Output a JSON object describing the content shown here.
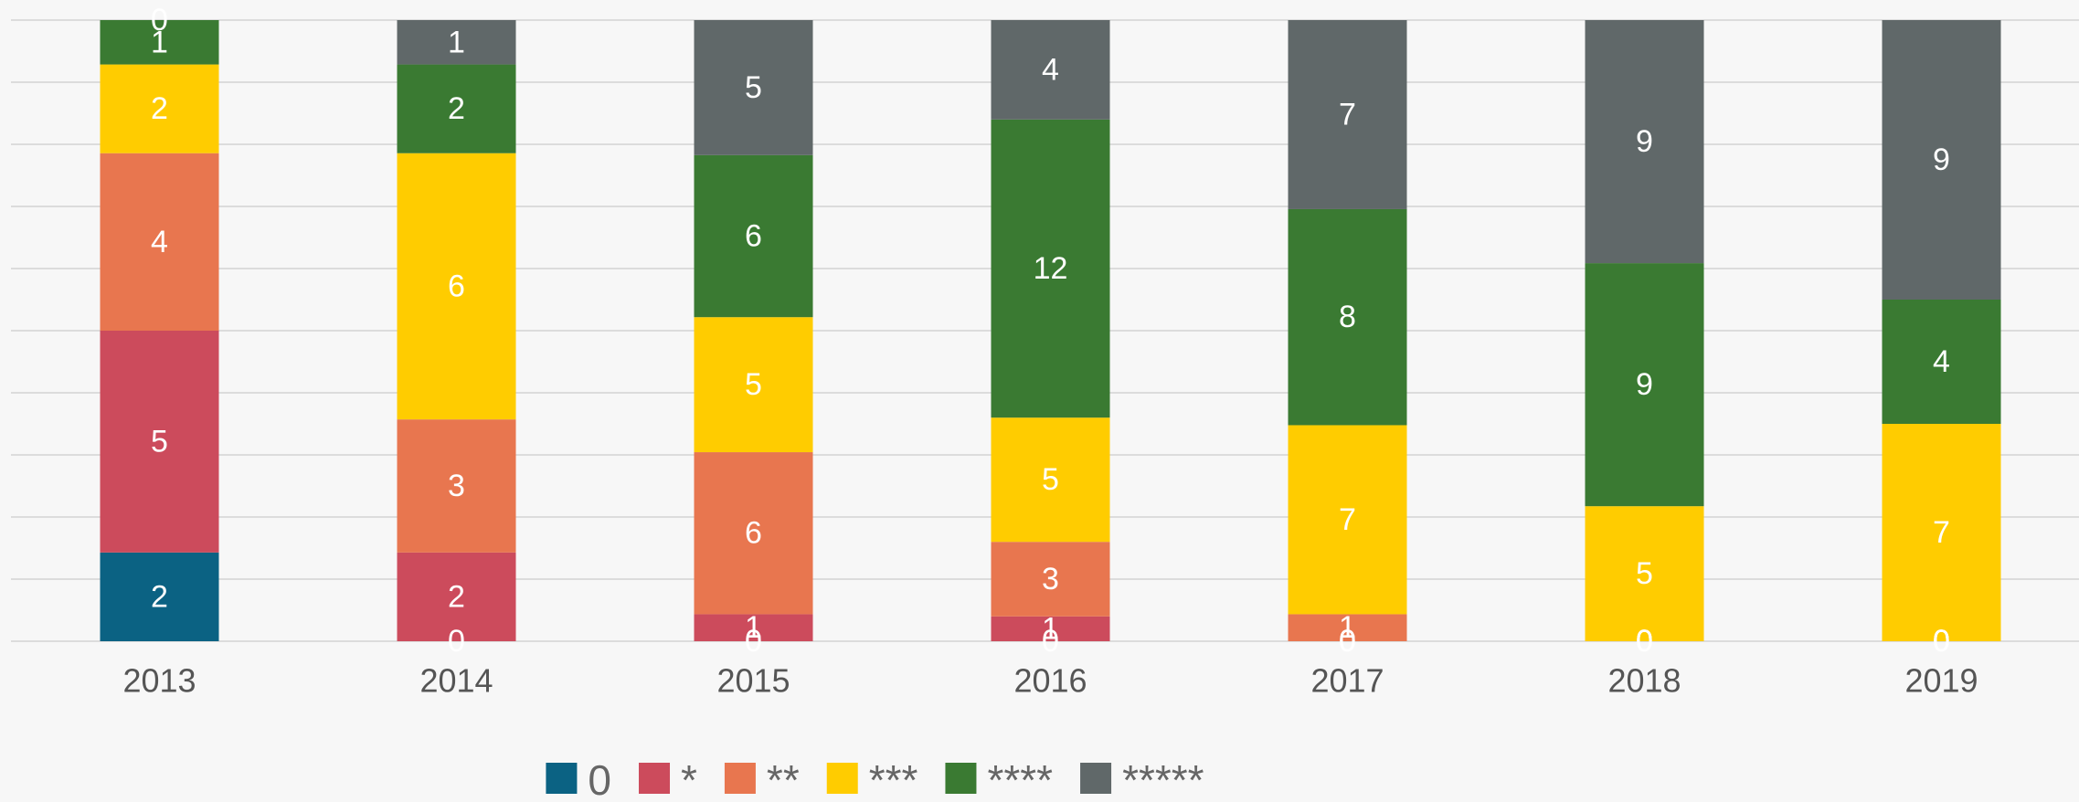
{
  "chart_data": {
    "type": "bar",
    "stacked": "percent",
    "categories": [
      "2013",
      "2014",
      "2015",
      "2016",
      "2017",
      "2018",
      "2019"
    ],
    "series": [
      {
        "name": "0",
        "color": "#0b6283",
        "values": [
          2,
          0,
          0,
          0,
          0,
          0,
          0
        ]
      },
      {
        "name": "*",
        "color": "#cc4b5c",
        "values": [
          5,
          2,
          1,
          1,
          0,
          0,
          0
        ]
      },
      {
        "name": "**",
        "color": "#e8764f",
        "values": [
          4,
          3,
          6,
          3,
          1,
          0,
          0
        ]
      },
      {
        "name": "***",
        "color": "#ffcc00",
        "values": [
          2,
          6,
          5,
          5,
          7,
          5,
          7
        ]
      },
      {
        "name": "****",
        "color": "#3a7a32",
        "values": [
          1,
          2,
          6,
          12,
          8,
          9,
          4
        ]
      },
      {
        "name": "*****",
        "color": "#606869",
        "values": [
          0,
          1,
          5,
          4,
          7,
          9,
          9
        ]
      }
    ],
    "ylim": [
      0,
      100
    ],
    "yticks": [
      0,
      10,
      20,
      30,
      40,
      50,
      60,
      70,
      80,
      90,
      100
    ],
    "grid": true
  }
}
